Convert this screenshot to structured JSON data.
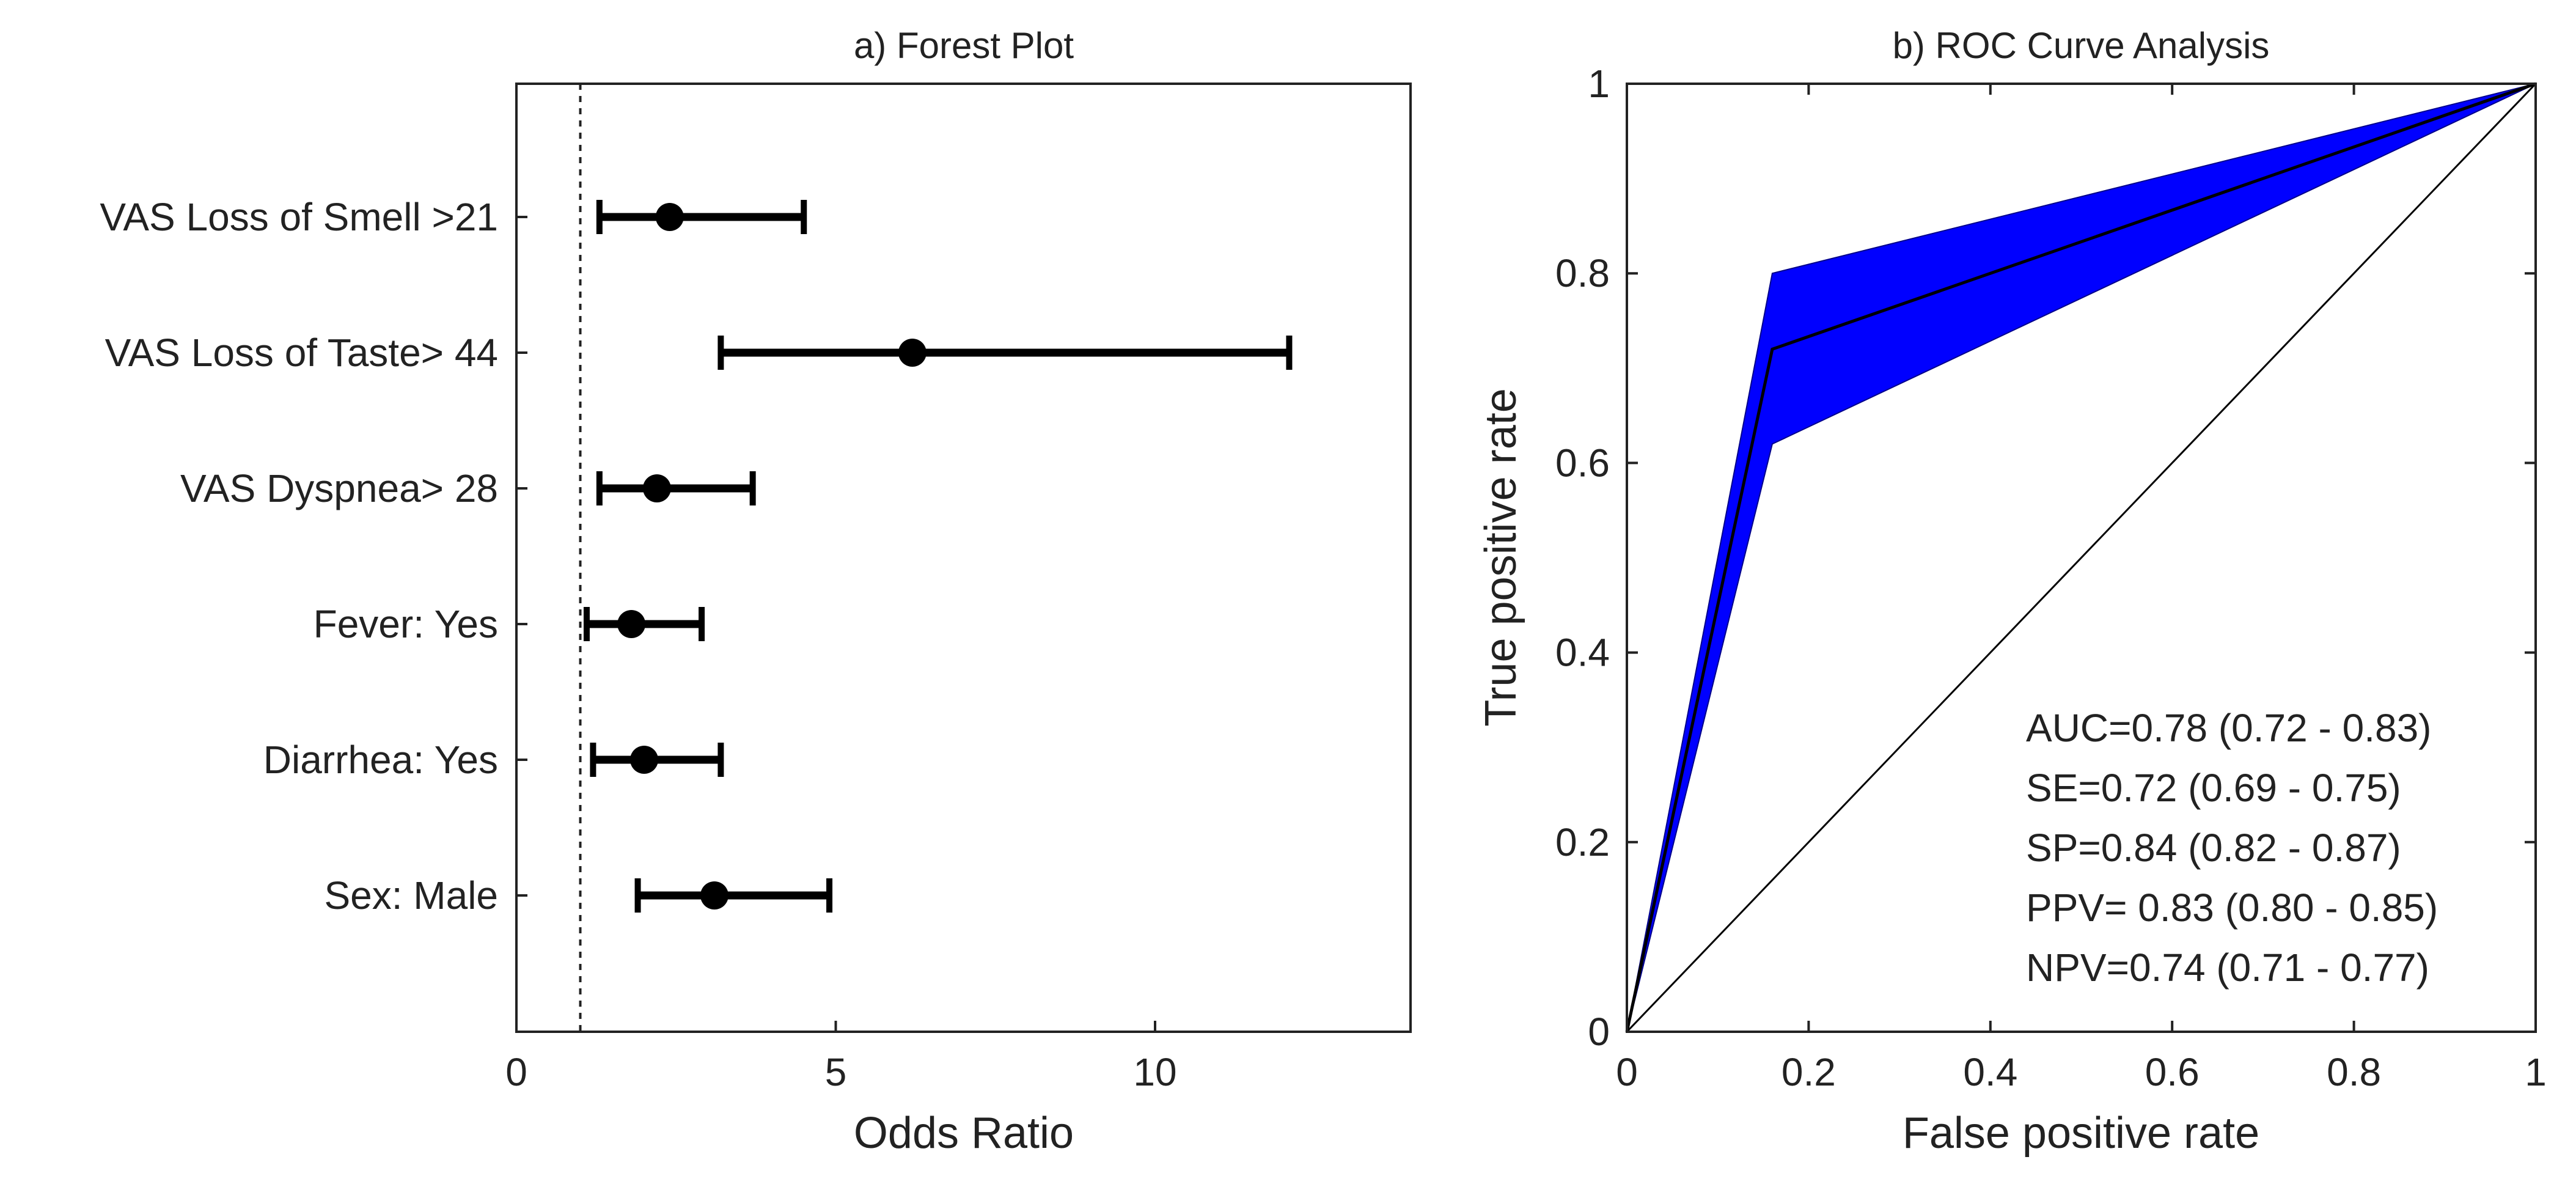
{
  "chart_data": [
    {
      "type": "forest",
      "title": "a) Forest Plot",
      "xlabel": "Odds Ratio",
      "ylabel": "",
      "xlim": [
        0,
        14
      ],
      "xticks": [
        0,
        5,
        10
      ],
      "reference_line": 1,
      "grid": false,
      "rows": [
        {
          "label": "VAS Loss of Smell >21",
          "or": 2.4,
          "lo": 1.3,
          "hi": 4.5
        },
        {
          "label": "VAS Loss of Taste> 44",
          "or": 6.2,
          "lo": 3.2,
          "hi": 12.1
        },
        {
          "label": "VAS Dyspnea> 28",
          "or": 2.2,
          "lo": 1.3,
          "hi": 3.7
        },
        {
          "label": "Fever: Yes",
          "or": 1.8,
          "lo": 1.1,
          "hi": 2.9
        },
        {
          "label": "Diarrhea: Yes",
          "or": 2.0,
          "lo": 1.2,
          "hi": 3.2
        },
        {
          "label": "Sex: Male",
          "or": 3.1,
          "lo": 1.9,
          "hi": 4.9
        }
      ]
    },
    {
      "type": "line",
      "title": "b) ROC Curve Analysis",
      "xlabel": "False positive rate",
      "ylabel": "True positive rate",
      "xlim": [
        0,
        1
      ],
      "ylim": [
        0,
        1
      ],
      "xticks": [
        0,
        0.2,
        0.4,
        0.6,
        0.8,
        1
      ],
      "yticks": [
        0,
        0.2,
        0.4,
        0.6,
        0.8,
        1
      ],
      "xtick_labels": [
        "0",
        "0.2",
        "0.4",
        "0.6",
        "0.8",
        "1"
      ],
      "ytick_labels": [
        "0",
        "0.2",
        "0.4",
        "0.6",
        "0.8",
        "1"
      ],
      "grid": false,
      "colors": {
        "band": "#0000ff",
        "curve": "#000000",
        "diagonal": "#000000"
      },
      "roc_curve": {
        "x": [
          0,
          0.16,
          1
        ],
        "y": [
          0,
          0.72,
          1
        ]
      },
      "confidence_band": {
        "x": [
          0,
          0.16,
          1
        ],
        "upper": [
          0,
          0.8,
          1
        ],
        "lower": [
          0,
          0.62,
          1
        ]
      },
      "diagonal": {
        "x": [
          0,
          1
        ],
        "y": [
          0,
          1
        ]
      },
      "annotations": [
        "AUC=0.78 (0.72 - 0.83)",
        "SE=0.72 (0.69 - 0.75)",
        "SP=0.84 (0.82 - 0.87)",
        "PPV= 0.83 (0.80 - 0.85)",
        "NPV=0.74 (0.71 - 0.77)"
      ]
    }
  ]
}
